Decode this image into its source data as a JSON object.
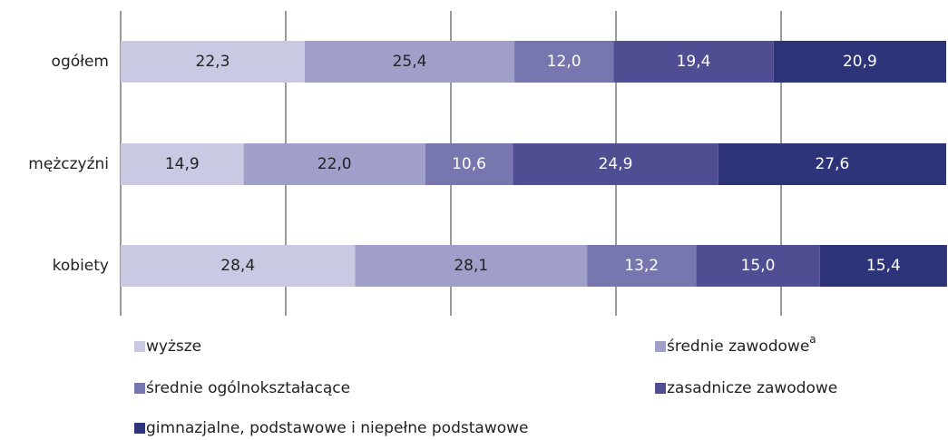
{
  "chart_data": {
    "type": "stacked_barh",
    "categories": [
      "ogółem",
      "mężczyźni",
      "kobiety"
    ],
    "series": [
      {
        "name": "wyższe",
        "color": "#c9c9e3",
        "values": [
          22.3,
          14.9,
          28.4
        ],
        "value_labels": [
          "22,3",
          "14,9",
          "28,4"
        ]
      },
      {
        "name": "średnie zawodowe",
        "superscript": "a",
        "color": "#a09fc9",
        "values": [
          25.4,
          22.0,
          28.1
        ],
        "value_labels": [
          "25,4",
          "22,0",
          "28,1"
        ]
      },
      {
        "name": "średnie ogólnokształacące",
        "color": "#7876af",
        "values": [
          12.0,
          10.6,
          13.2
        ],
        "value_labels": [
          "12,0",
          "10,6",
          "13,2"
        ]
      },
      {
        "name": "zasadnicze zawodowe",
        "color": "#4f4e92",
        "values": [
          19.4,
          24.9,
          15.0
        ],
        "value_labels": [
          "19,4",
          "24,9",
          "15,0"
        ]
      },
      {
        "name": "gimnazjalne, podstawowe i niepełne podstawowe",
        "color": "#2d3479",
        "values": [
          20.9,
          27.6,
          15.4
        ],
        "value_labels": [
          "20,9",
          "27,6",
          "15,4"
        ]
      }
    ],
    "xlim": [
      0,
      100
    ],
    "xticks": [
      0,
      20,
      40,
      60,
      80
    ],
    "grid": true
  }
}
